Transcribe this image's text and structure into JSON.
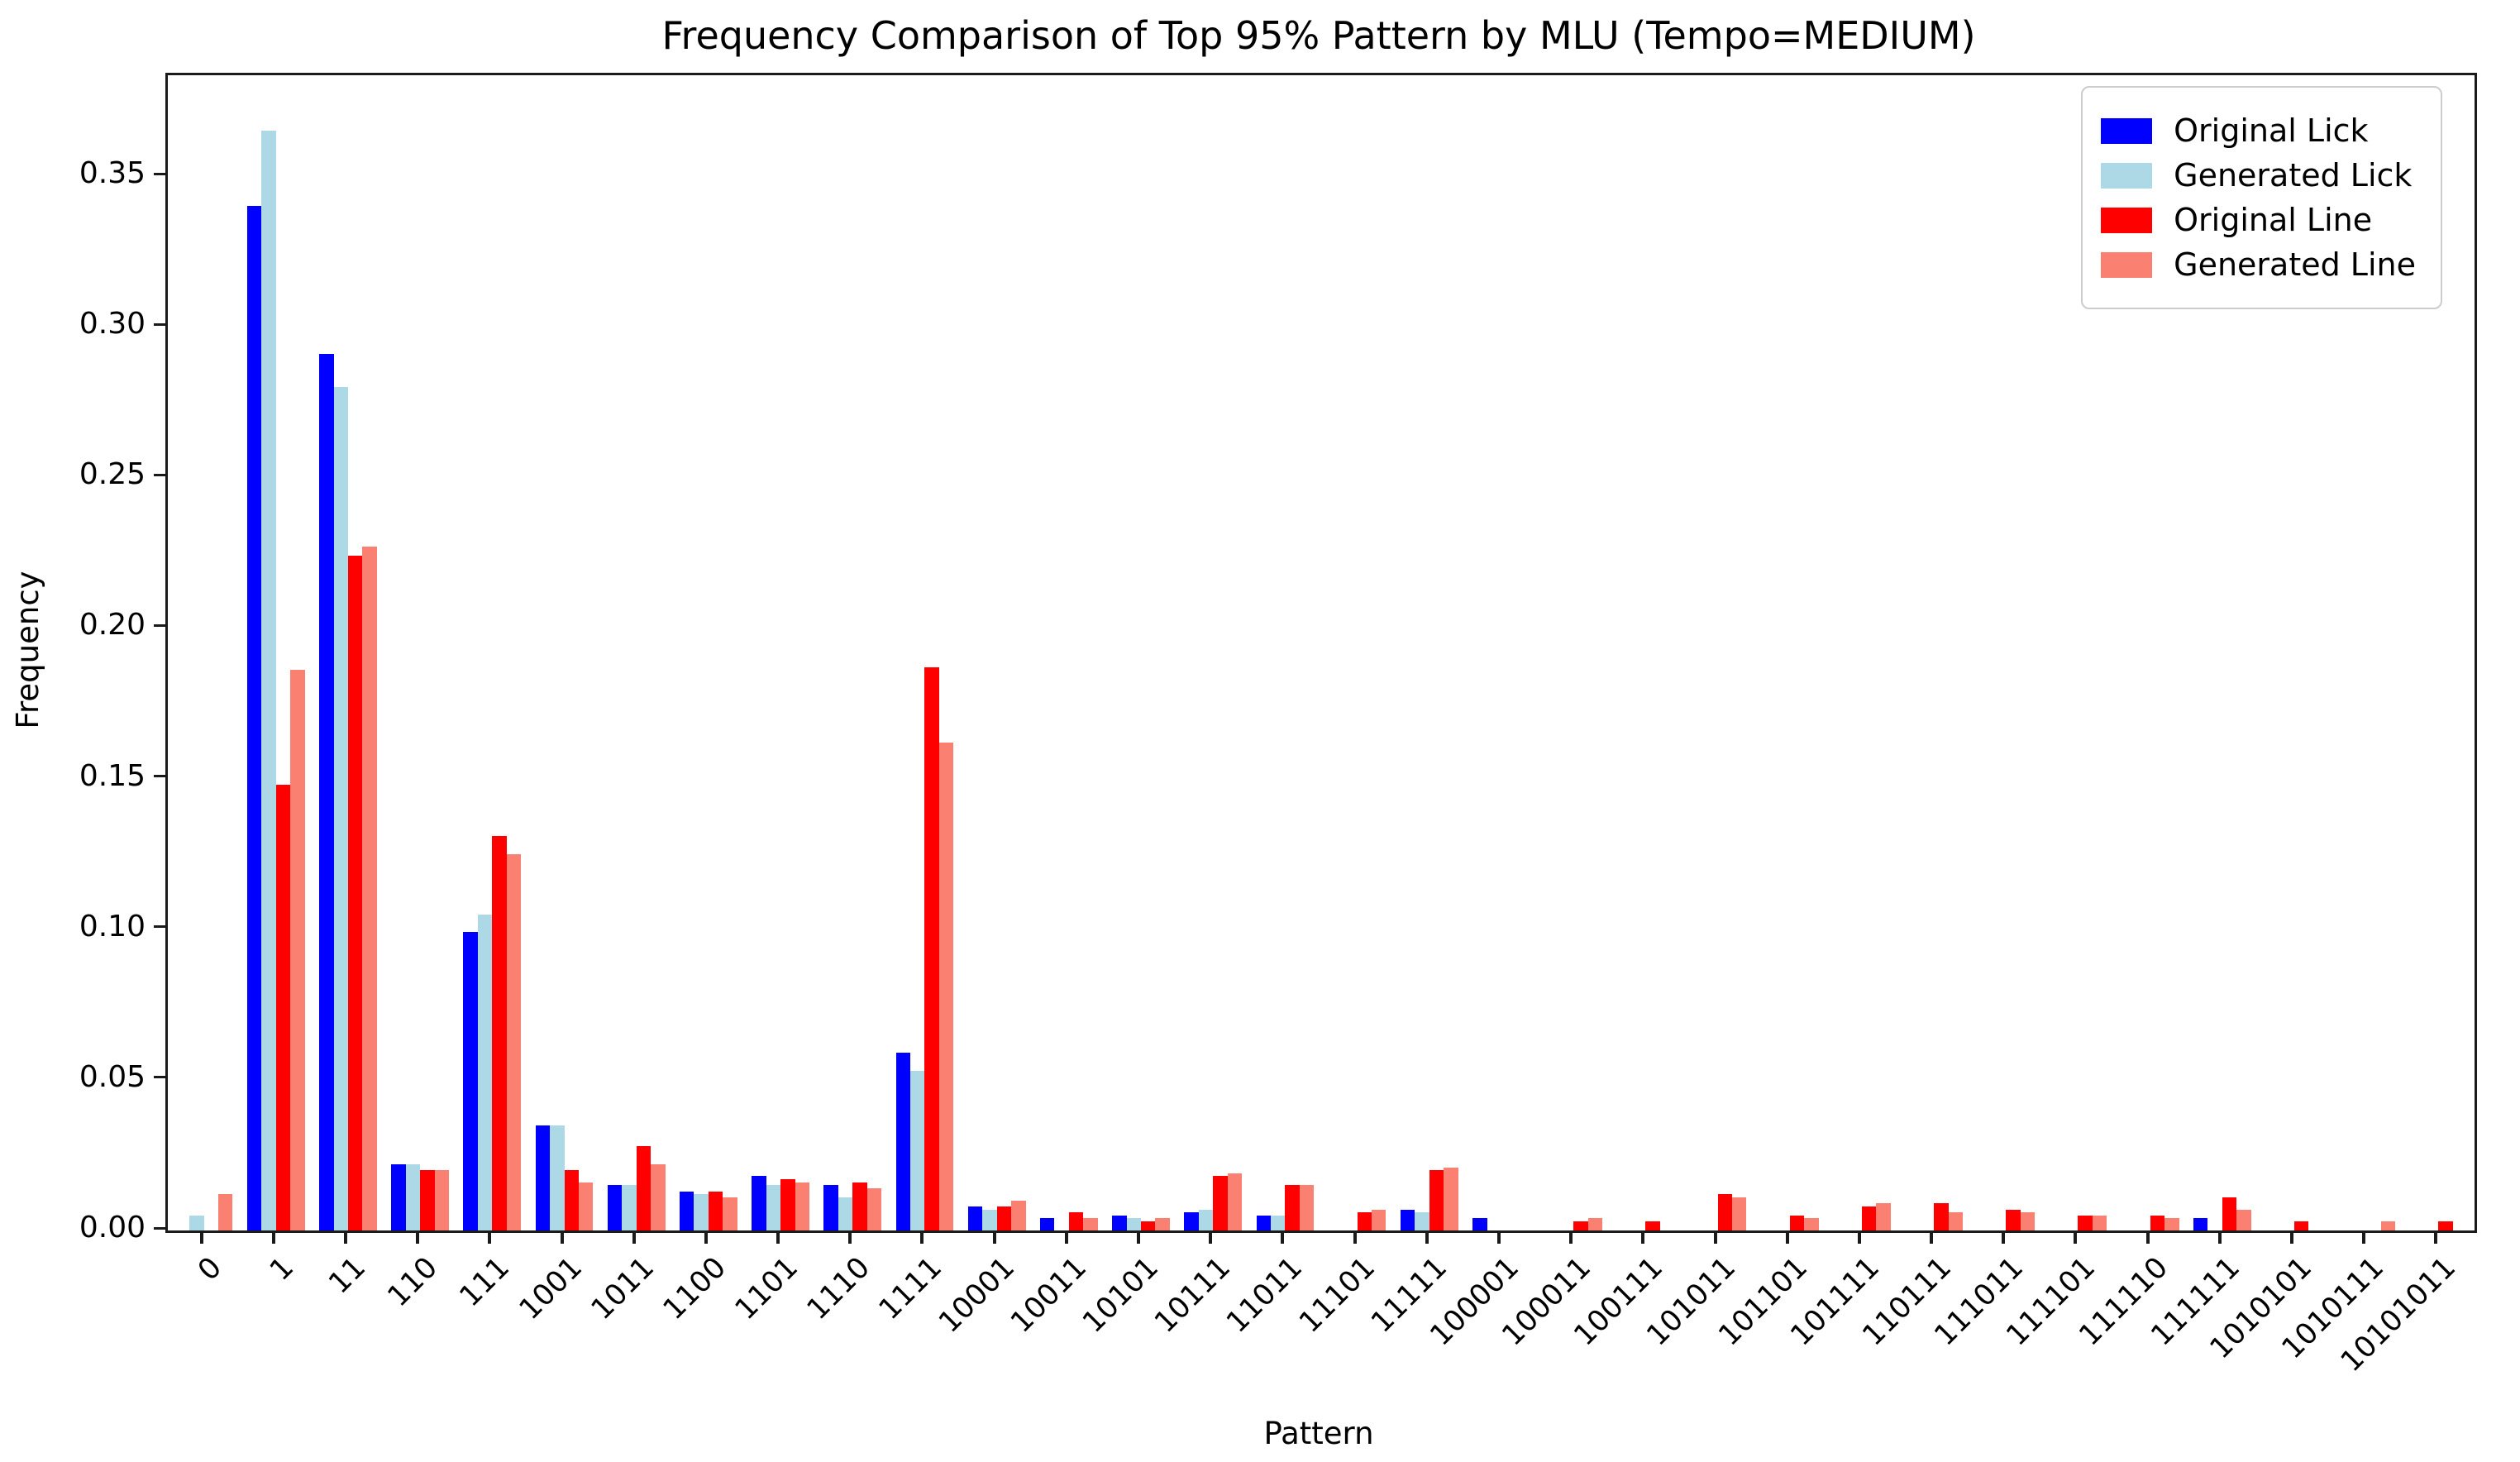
{
  "title": "Frequency Comparison of Top 95% Pattern by MLU (Tempo=MEDIUM)",
  "chart_data": {
    "type": "bar",
    "title": "Frequency Comparison of Top 95% Pattern by MLU (Tempo=MEDIUM)",
    "xlabel": "Pattern",
    "ylabel": "Frequency",
    "ylim": [
      0,
      0.3835
    ],
    "yticks": [
      0.0,
      0.05,
      0.1,
      0.15,
      0.2,
      0.25,
      0.3,
      0.35
    ],
    "grid": false,
    "legend_position": "upper right",
    "x_tick_rotation": 45,
    "categories": [
      "0",
      "1",
      "11",
      "110",
      "111",
      "1001",
      "1011",
      "1100",
      "1101",
      "1110",
      "1111",
      "10001",
      "10011",
      "10101",
      "10111",
      "11011",
      "11101",
      "11111",
      "100001",
      "100011",
      "100111",
      "101011",
      "101101",
      "101111",
      "110111",
      "111011",
      "111101",
      "111110",
      "111111",
      "1010101",
      "1010111",
      "10101011"
    ],
    "series": [
      {
        "name": "Original Lick",
        "color": "#0000ff",
        "values": [
          0,
          0.34,
          0.291,
          0.022,
          0.099,
          0.035,
          0.015,
          0.013,
          0.018,
          0.015,
          0.059,
          0.008,
          0.004,
          0.005,
          0.006,
          0.005,
          0,
          0.007,
          0.004,
          0,
          0,
          0,
          0,
          0,
          0,
          0,
          0,
          0,
          0.004,
          0,
          0,
          0
        ]
      },
      {
        "name": "Generated Lick",
        "color": "#add8e6",
        "values": [
          0.005,
          0.365,
          0.28,
          0.022,
          0.105,
          0.035,
          0.015,
          0.012,
          0.015,
          0.011,
          0.053,
          0.007,
          0,
          0.004,
          0.007,
          0.005,
          0,
          0.006,
          0,
          0,
          0,
          0,
          0,
          0,
          0,
          0,
          0,
          0,
          0,
          0,
          0,
          0
        ]
      },
      {
        "name": "Original Line",
        "color": "#ff0000",
        "values": [
          0,
          0.148,
          0.224,
          0.02,
          0.131,
          0.02,
          0.028,
          0.013,
          0.017,
          0.016,
          0.187,
          0.008,
          0.006,
          0.003,
          0.018,
          0.015,
          0.006,
          0.02,
          0,
          0.003,
          0.003,
          0.012,
          0.005,
          0.008,
          0.009,
          0.007,
          0.005,
          0.005,
          0.011,
          0.003,
          0,
          0.003
        ]
      },
      {
        "name": "Generated Line",
        "color": "#fa8072",
        "values": [
          0.012,
          0.186,
          0.227,
          0.02,
          0.125,
          0.016,
          0.022,
          0.011,
          0.016,
          0.014,
          0.162,
          0.01,
          0.004,
          0.004,
          0.019,
          0.015,
          0.007,
          0.021,
          0,
          0.004,
          0,
          0.011,
          0.004,
          0.009,
          0.006,
          0.006,
          0.005,
          0.004,
          0.007,
          0,
          0.003,
          0
        ]
      }
    ]
  }
}
